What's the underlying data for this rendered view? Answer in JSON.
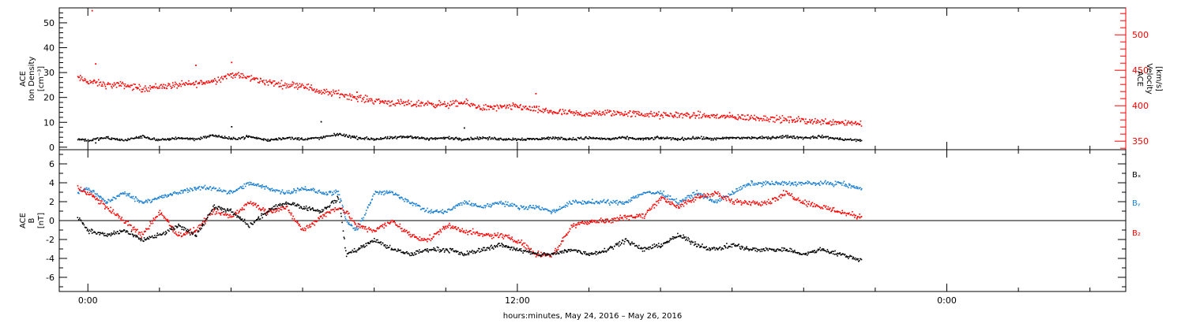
{
  "chart_data": [
    {
      "type": "scatter",
      "panel": "top",
      "ylabel_left": [
        "ACE",
        "Ion Density",
        "[cm⁻³]"
      ],
      "ylabel_right": [
        "ACE",
        "Velocity",
        "[km/s]"
      ],
      "ylim_left": [
        -1,
        56
      ],
      "ylim_right": [
        338,
        538
      ],
      "y_ticks_left": [
        "0",
        "10",
        "20",
        "30",
        "40",
        "50"
      ],
      "y_ticks_right": [
        "350",
        "400",
        "450",
        "500"
      ],
      "series": [
        {
          "axis": "left",
          "color": "#000000",
          "points": [
            [
              -0.3,
              3.5
            ],
            [
              0,
              3
            ],
            [
              0.5,
              4
            ],
            [
              1,
              3
            ],
            [
              1.5,
              4.5
            ],
            [
              2,
              3
            ],
            [
              2.5,
              4
            ],
            [
              3,
              3.5
            ],
            [
              3.5,
              5
            ],
            [
              4,
              3.5
            ],
            [
              4.5,
              4.5
            ],
            [
              5,
              3
            ],
            [
              5.5,
              4
            ],
            [
              6,
              3.5
            ],
            [
              6.5,
              4
            ],
            [
              7,
              5.5
            ],
            [
              7.5,
              4
            ],
            [
              8,
              3.5
            ],
            [
              8.5,
              4
            ],
            [
              9,
              4.5
            ],
            [
              9.5,
              3.5
            ],
            [
              10,
              4
            ],
            [
              10.5,
              3.5
            ],
            [
              11,
              4
            ],
            [
              11.5,
              3.5
            ],
            [
              12,
              3.5
            ],
            [
              12.5,
              3.5
            ],
            [
              13,
              4
            ],
            [
              13.5,
              3.5
            ],
            [
              14,
              4
            ],
            [
              14.5,
              3.5
            ],
            [
              15,
              4
            ],
            [
              15.5,
              3.5
            ],
            [
              16,
              4
            ],
            [
              16.5,
              3.5
            ],
            [
              17,
              4
            ],
            [
              17.5,
              3.5
            ],
            [
              18,
              4
            ],
            [
              18.5,
              4
            ],
            [
              19,
              4
            ],
            [
              19.5,
              4.5
            ],
            [
              20,
              4
            ],
            [
              20.5,
              4.5
            ],
            [
              21,
              3.5
            ],
            [
              21.5,
              3
            ]
          ],
          "highlights": [
            [
              0.2,
              2
            ],
            [
              4,
              8.5
            ],
            [
              6.5,
              10.5
            ],
            [
              10.5,
              8
            ]
          ]
        },
        {
          "axis": "right",
          "color": "#ff0000",
          "points": [
            [
              -0.3,
              440
            ],
            [
              0,
              435
            ],
            [
              0.5,
              430
            ],
            [
              1,
              430
            ],
            [
              1.5,
              425
            ],
            [
              2,
              428
            ],
            [
              2.5,
              430
            ],
            [
              3,
              432
            ],
            [
              3.5,
              436
            ],
            [
              4,
              445
            ],
            [
              4.5,
              440
            ],
            [
              5,
              434
            ],
            [
              5.5,
              430
            ],
            [
              6,
              430
            ],
            [
              6.5,
              420
            ],
            [
              7,
              418
            ],
            [
              7.5,
              412
            ],
            [
              8,
              408
            ],
            [
              8.5,
              405
            ],
            [
              9,
              403
            ],
            [
              9.5,
              404
            ],
            [
              10,
              402
            ],
            [
              10.5,
              405
            ],
            [
              11,
              398
            ],
            [
              11.5,
              398
            ],
            [
              12,
              400
            ],
            [
              12.5,
              395
            ],
            [
              13,
              392
            ],
            [
              13.5,
              390
            ],
            [
              14,
              389
            ],
            [
              14.5,
              391
            ],
            [
              15,
              390
            ],
            [
              15.5,
              389
            ],
            [
              16,
              387
            ],
            [
              16.5,
              388
            ],
            [
              17,
              387
            ],
            [
              17.5,
              386
            ],
            [
              18,
              385
            ],
            [
              18.5,
              384
            ],
            [
              19,
              383
            ],
            [
              19.5,
              381
            ],
            [
              20,
              380
            ],
            [
              20.5,
              378
            ],
            [
              21,
              378
            ],
            [
              21.5,
              376
            ]
          ],
          "highlights": [
            [
              0.1,
              535
            ],
            [
              0.2,
              460
            ],
            [
              3,
              458
            ],
            [
              4,
              462
            ],
            [
              7.5,
              420
            ],
            [
              12.5,
              418
            ]
          ]
        }
      ]
    },
    {
      "type": "scatter",
      "panel": "bottom",
      "ylabel_left": [
        "ACE",
        "B",
        "[nT]"
      ],
      "ylim_left": [
        -7.5,
        7.5
      ],
      "y_ticks_left": [
        "6",
        "4",
        "2",
        "0",
        "-2",
        "-4",
        "-6"
      ],
      "legend": [
        "Bₓ",
        "Bᵧ",
        "B₂"
      ],
      "legend_colors": [
        "#000000",
        "#1a7fd0",
        "#ff0000"
      ],
      "series": [
        {
          "name": "Bₓ",
          "color": "#000000",
          "points": [
            [
              -0.3,
              0.5
            ],
            [
              0,
              -1
            ],
            [
              0.5,
              -1.5
            ],
            [
              1,
              -1
            ],
            [
              1.5,
              -2
            ],
            [
              2,
              -1.5
            ],
            [
              2.5,
              -0.5
            ],
            [
              3,
              -1.5
            ],
            [
              3.5,
              1.5
            ],
            [
              4,
              1
            ],
            [
              4.5,
              -0.5
            ],
            [
              5,
              1
            ],
            [
              5.5,
              2
            ],
            [
              6,
              1.5
            ],
            [
              6.5,
              1
            ],
            [
              7,
              2.5
            ],
            [
              7.2,
              -3.5
            ],
            [
              7.5,
              -3
            ],
            [
              8,
              -2
            ],
            [
              8.5,
              -3
            ],
            [
              9,
              -3.5
            ],
            [
              9.5,
              -3
            ],
            [
              10,
              -3
            ],
            [
              10.5,
              -3.5
            ],
            [
              11,
              -3
            ],
            [
              11.5,
              -2.5
            ],
            [
              12,
              -3
            ],
            [
              12.5,
              -3.5
            ],
            [
              13,
              -3.5
            ],
            [
              13.5,
              -3
            ],
            [
              14,
              -3.5
            ],
            [
              14.5,
              -3
            ],
            [
              15,
              -2
            ],
            [
              15.5,
              -3
            ],
            [
              16,
              -2.5
            ],
            [
              16.5,
              -1.5
            ],
            [
              17,
              -2.5
            ],
            [
              17.5,
              -3
            ],
            [
              18,
              -2.5
            ],
            [
              18.5,
              -3
            ],
            [
              19,
              -3
            ],
            [
              19.5,
              -3
            ],
            [
              20,
              -3.5
            ],
            [
              20.5,
              -3
            ],
            [
              21,
              -3.5
            ],
            [
              21.5,
              -4
            ]
          ]
        },
        {
          "name": "Bᵧ",
          "color": "#1a7fd0",
          "points": [
            [
              -0.3,
              3
            ],
            [
              0,
              3.5
            ],
            [
              0.5,
              2
            ],
            [
              1,
              3
            ],
            [
              1.5,
              2
            ],
            [
              2,
              2.5
            ],
            [
              2.5,
              3
            ],
            [
              3,
              3.5
            ],
            [
              3.5,
              3.5
            ],
            [
              4,
              3
            ],
            [
              4.5,
              4
            ],
            [
              5,
              3.5
            ],
            [
              5.5,
              3
            ],
            [
              6,
              3.5
            ],
            [
              6.5,
              3
            ],
            [
              7,
              3
            ],
            [
              7.2,
              0
            ],
            [
              7.5,
              -1
            ],
            [
              8,
              3
            ],
            [
              8.5,
              3
            ],
            [
              9,
              2
            ],
            [
              9.5,
              1
            ],
            [
              10,
              1
            ],
            [
              10.5,
              2
            ],
            [
              11,
              1.5
            ],
            [
              11.5,
              2
            ],
            [
              12,
              1.5
            ],
            [
              12.5,
              1.5
            ],
            [
              13,
              1
            ],
            [
              13.5,
              2
            ],
            [
              14,
              2
            ],
            [
              14.5,
              2
            ],
            [
              15,
              2
            ],
            [
              15.5,
              3
            ],
            [
              16,
              3
            ],
            [
              16.5,
              2
            ],
            [
              17,
              3
            ],
            [
              17.5,
              2
            ],
            [
              18,
              3
            ],
            [
              18.5,
              4
            ],
            [
              19,
              4
            ],
            [
              19.5,
              4
            ],
            [
              20,
              4
            ],
            [
              20.5,
              4
            ],
            [
              21,
              4
            ],
            [
              21.5,
              3.5
            ]
          ]
        },
        {
          "name": "B₂",
          "color": "#ff0000",
          "points": [
            [
              -0.3,
              3.5
            ],
            [
              0,
              3
            ],
            [
              0.5,
              1.5
            ],
            [
              1,
              0
            ],
            [
              1.5,
              -1.5
            ],
            [
              2,
              1
            ],
            [
              2.5,
              -1.5
            ],
            [
              3,
              -1
            ],
            [
              3.5,
              1
            ],
            [
              4,
              0.5
            ],
            [
              4.5,
              2
            ],
            [
              5,
              1
            ],
            [
              5.5,
              1.5
            ],
            [
              6,
              -1
            ],
            [
              6.5,
              0.5
            ],
            [
              7,
              1.5
            ],
            [
              7.2,
              1
            ],
            [
              7.5,
              -0.5
            ],
            [
              8,
              -1
            ],
            [
              8.5,
              0
            ],
            [
              9,
              -1.5
            ],
            [
              9.5,
              -2
            ],
            [
              10,
              -0.5
            ],
            [
              10.5,
              -1
            ],
            [
              11,
              -1.5
            ],
            [
              11.5,
              -1.5
            ],
            [
              12,
              -2
            ],
            [
              12.5,
              -3.5
            ],
            [
              13,
              -3.5
            ],
            [
              13.5,
              -0.5
            ],
            [
              14,
              0
            ],
            [
              14.5,
              0
            ],
            [
              15,
              0.5
            ],
            [
              15.5,
              0.5
            ],
            [
              16,
              2.5
            ],
            [
              16.5,
              1.5
            ],
            [
              17,
              2.5
            ],
            [
              17.5,
              3
            ],
            [
              18,
              2
            ],
            [
              18.5,
              2
            ],
            [
              19,
              2
            ],
            [
              19.5,
              3
            ],
            [
              20,
              2
            ],
            [
              20.5,
              1.5
            ],
            [
              21,
              1
            ],
            [
              21.5,
              0.5
            ]
          ]
        }
      ]
    }
  ],
  "x_axis": {
    "xlim": [
      -0.8,
      29
    ],
    "major_ticks": [
      0,
      12,
      24
    ],
    "major_tick_labels": [
      "0:00",
      "12:00",
      "0:00"
    ],
    "minor_tick_step": 2,
    "xlabel": "hours:minutes, May 24, 2016 – May 26, 2016"
  }
}
